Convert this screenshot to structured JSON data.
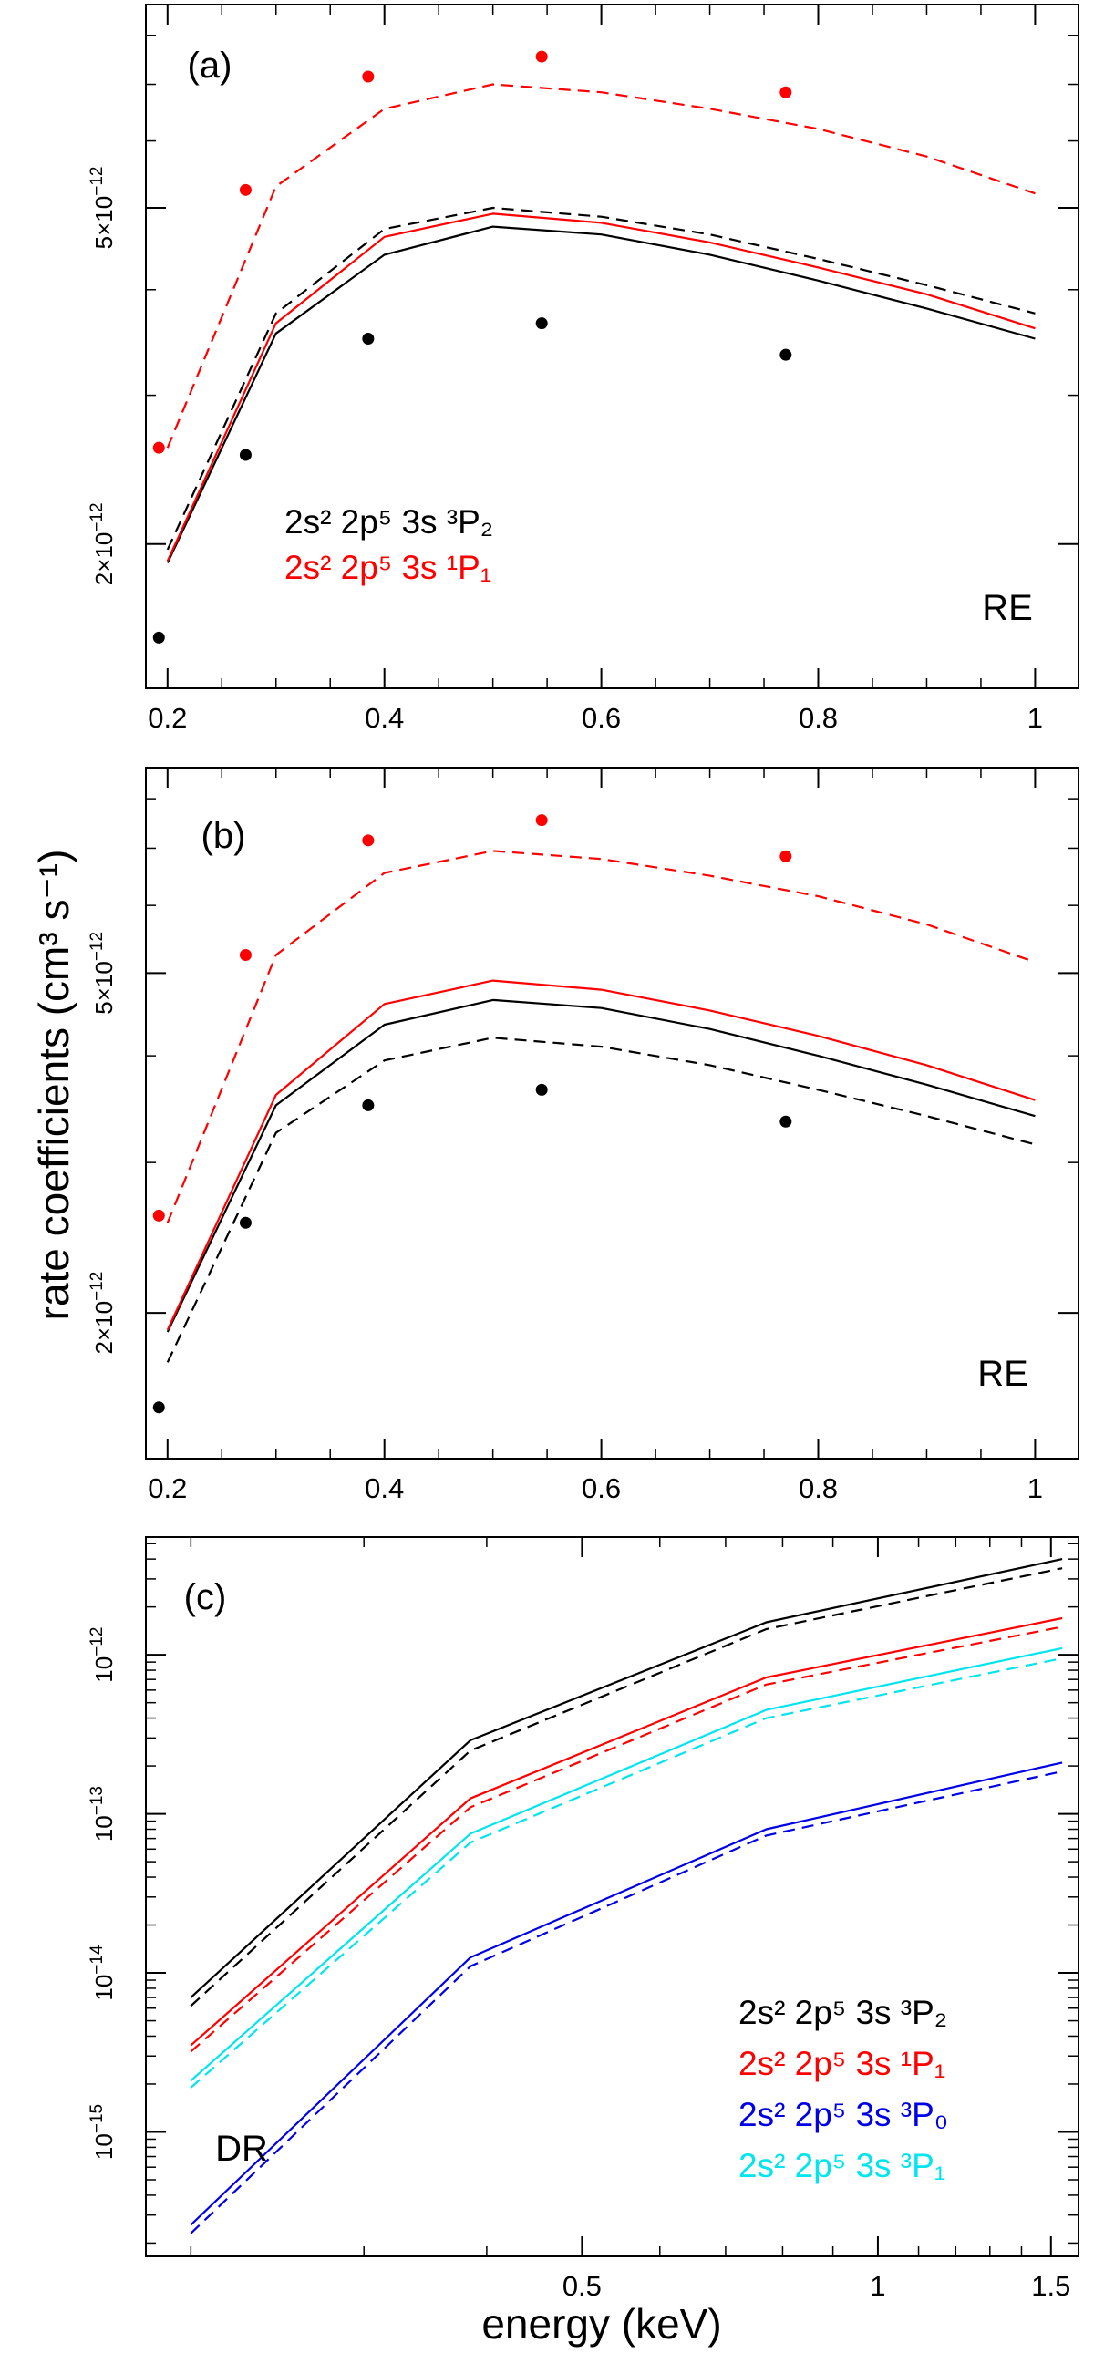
{
  "figure": {
    "ylabel": "rate coefficients (cm³ s⁻¹)",
    "xlabel": "energy (keV)"
  },
  "chart_data": [
    {
      "id": "a",
      "type": "line",
      "panel_label": "(a)",
      "process_label": "RE",
      "xlabel": "",
      "ylabel": "",
      "xscale": "linear",
      "yscale": "log",
      "xlim": [
        0.18,
        1.04
      ],
      "ylim": [
        1.35e-12,
        8.7e-12
      ],
      "x_ticks": [
        0.2,
        0.4,
        0.6,
        0.8,
        1.0
      ],
      "x_tick_labels": [
        "0.2",
        "0.4",
        "0.6",
        "0.8",
        "1"
      ],
      "y_ticks": [
        2e-12,
        5e-12
      ],
      "y_tick_labels": [
        {
          "mantissa": "2×10",
          "exp": "−12"
        },
        {
          "mantissa": "5×10",
          "exp": "−12"
        }
      ],
      "legend": [
        {
          "text": "2s² 2p⁵ 3s ³P₂",
          "color": "#000000"
        },
        {
          "text": "2s² 2p⁵ 3s ¹P₁",
          "color": "#ff0000"
        }
      ],
      "series": [
        {
          "name": "3P2 solid",
          "color": "#000000",
          "style": "solid",
          "x": [
            0.2,
            0.3,
            0.4,
            0.5,
            0.6,
            0.7,
            0.8,
            0.9,
            1.0
          ],
          "y": [
            1.9e-12,
            3.55e-12,
            4.4e-12,
            4.75e-12,
            4.65e-12,
            4.4e-12,
            4.1e-12,
            3.8e-12,
            3.5e-12
          ]
        },
        {
          "name": "3P2 dashed",
          "color": "#000000",
          "style": "dashed",
          "x": [
            0.2,
            0.3,
            0.4,
            0.5,
            0.6,
            0.7,
            0.8,
            0.9,
            1.0
          ],
          "y": [
            1.97e-12,
            3.75e-12,
            4.72e-12,
            5e-12,
            4.88e-12,
            4.65e-12,
            4.35e-12,
            4.05e-12,
            3.75e-12
          ]
        },
        {
          "name": "1P1 solid",
          "color": "#ff0000",
          "style": "solid",
          "x": [
            0.2,
            0.3,
            0.4,
            0.5,
            0.6,
            0.7,
            0.8,
            0.9,
            1.0
          ],
          "y": [
            1.91e-12,
            3.65e-12,
            4.62e-12,
            4.92e-12,
            4.8e-12,
            4.55e-12,
            4.25e-12,
            3.95e-12,
            3.6e-12
          ]
        },
        {
          "name": "1P1 dashed",
          "color": "#ff0000",
          "style": "dashed",
          "x": [
            0.2,
            0.3,
            0.4,
            0.5,
            0.6,
            0.7,
            0.8,
            0.9,
            1.0
          ],
          "y": [
            2.6e-12,
            5.3e-12,
            6.55e-12,
            7e-12,
            6.85e-12,
            6.55e-12,
            6.2e-12,
            5.75e-12,
            5.2e-12
          ]
        }
      ],
      "points": [
        {
          "name": "3P2 points",
          "color": "#000000",
          "x": [
            0.192,
            0.272,
            0.385,
            0.545,
            0.77
          ],
          "y": [
            1.55e-12,
            2.55e-12,
            3.5e-12,
            3.65e-12,
            3.35e-12
          ]
        },
        {
          "name": "1P1 points",
          "color": "#ff0000",
          "x": [
            0.192,
            0.272,
            0.385,
            0.545,
            0.77
          ],
          "y": [
            2.6e-12,
            5.25e-12,
            7.15e-12,
            7.55e-12,
            6.85e-12
          ]
        }
      ]
    },
    {
      "id": "b",
      "type": "line",
      "panel_label": "(b)",
      "process_label": "RE",
      "xlabel": "",
      "ylabel": "",
      "xscale": "linear",
      "yscale": "log",
      "xlim": [
        0.18,
        1.04
      ],
      "ylim": [
        1.35e-12,
        8.7e-12
      ],
      "x_ticks": [
        0.2,
        0.4,
        0.6,
        0.8,
        1.0
      ],
      "x_tick_labels": [
        "0.2",
        "0.4",
        "0.6",
        "0.8",
        "1"
      ],
      "y_ticks": [
        2e-12,
        5e-12
      ],
      "y_tick_labels": [
        {
          "mantissa": "2×10",
          "exp": "−12"
        },
        {
          "mantissa": "5×10",
          "exp": "−12"
        }
      ],
      "legend": [],
      "series": [
        {
          "name": "3P2 solid",
          "color": "#000000",
          "style": "solid",
          "x": [
            0.2,
            0.3,
            0.4,
            0.5,
            0.6,
            0.7,
            0.8,
            0.9,
            1.0
          ],
          "y": [
            1.9e-12,
            3.5e-12,
            4.35e-12,
            4.65e-12,
            4.55e-12,
            4.3e-12,
            4e-12,
            3.7e-12,
            3.4e-12
          ]
        },
        {
          "name": "3P2 dashed",
          "color": "#000000",
          "style": "dashed",
          "x": [
            0.2,
            0.3,
            0.4,
            0.5,
            0.6,
            0.7,
            0.8,
            0.9,
            1.0
          ],
          "y": [
            1.75e-12,
            3.25e-12,
            3.95e-12,
            4.2e-12,
            4.1e-12,
            3.9e-12,
            3.65e-12,
            3.4e-12,
            3.15e-12
          ]
        },
        {
          "name": "1P1 solid",
          "color": "#ff0000",
          "style": "solid",
          "x": [
            0.2,
            0.3,
            0.4,
            0.5,
            0.6,
            0.7,
            0.8,
            0.9,
            1.0
          ],
          "y": [
            1.91e-12,
            3.6e-12,
            4.6e-12,
            4.9e-12,
            4.78e-12,
            4.52e-12,
            4.22e-12,
            3.9e-12,
            3.55e-12
          ]
        },
        {
          "name": "1P1 dashed",
          "color": "#ff0000",
          "style": "dashed",
          "x": [
            0.2,
            0.3,
            0.4,
            0.5,
            0.6,
            0.7,
            0.8,
            0.9,
            1.0
          ],
          "y": [
            2.55e-12,
            5.25e-12,
            6.55e-12,
            6.95e-12,
            6.8e-12,
            6.5e-12,
            6.15e-12,
            5.7e-12,
            5.15e-12
          ]
        }
      ],
      "points": [
        {
          "name": "3P2 points",
          "color": "#000000",
          "x": [
            0.192,
            0.272,
            0.385,
            0.545,
            0.77
          ],
          "y": [
            1.55e-12,
            2.55e-12,
            3.5e-12,
            3.65e-12,
            3.35e-12
          ]
        },
        {
          "name": "1P1 points",
          "color": "#ff0000",
          "x": [
            0.192,
            0.272,
            0.385,
            0.545,
            0.77
          ],
          "y": [
            2.6e-12,
            5.25e-12,
            7.15e-12,
            7.55e-12,
            6.85e-12
          ]
        }
      ]
    },
    {
      "id": "c",
      "type": "line",
      "panel_label": "(c)",
      "process_label": "DR",
      "xlabel": "energy (keV)",
      "ylabel": "",
      "xscale": "log",
      "yscale": "log",
      "xlim": [
        0.18,
        1.6
      ],
      "ylim": [
        1.65e-16,
        5.5e-12
      ],
      "x_ticks": [
        0.5,
        1.0,
        1.5
      ],
      "x_tick_labels": [
        "0.5",
        "1",
        "1.5"
      ],
      "y_ticks": [
        1e-15,
        1e-14,
        1e-13,
        1e-12
      ],
      "y_tick_labels": [
        {
          "mantissa": "10",
          "exp": "−15"
        },
        {
          "mantissa": "10",
          "exp": "−14"
        },
        {
          "mantissa": "10",
          "exp": "−13"
        },
        {
          "mantissa": "10",
          "exp": "−12"
        }
      ],
      "legend": [
        {
          "text": "2s² 2p⁵ 3s ³P₂",
          "color": "#000000"
        },
        {
          "text": "2s² 2p⁵ 3s ¹P₁",
          "color": "#ff0000"
        },
        {
          "text": "2s² 2p⁵ 3s ³P₀",
          "color": "#0000e6"
        },
        {
          "text": "2s² 2p⁵ 3s ³P₁",
          "color": "#00e5ee"
        }
      ],
      "series": [
        {
          "name": "3P2 solid",
          "color": "#000000",
          "style": "solid",
          "x": [
            0.2,
            0.385,
            0.77,
            1.54
          ],
          "y": [
            7e-15,
            2.9e-13,
            1.6e-12,
            4e-12
          ]
        },
        {
          "name": "3P2 dashed",
          "color": "#000000",
          "style": "dashed",
          "x": [
            0.2,
            0.385,
            0.77,
            1.54
          ],
          "y": [
            6.2e-15,
            2.5e-13,
            1.45e-12,
            3.5e-12
          ]
        },
        {
          "name": "1P1 solid",
          "color": "#ff0000",
          "style": "solid",
          "x": [
            0.2,
            0.385,
            0.77,
            1.54
          ],
          "y": [
            3.5e-15,
            1.25e-13,
            7.2e-13,
            1.7e-12
          ]
        },
        {
          "name": "1P1 dashed",
          "color": "#ff0000",
          "style": "dashed",
          "x": [
            0.2,
            0.385,
            0.77,
            1.54
          ],
          "y": [
            3.2e-15,
            1.1e-13,
            6.5e-13,
            1.5e-12
          ]
        },
        {
          "name": "3P1 solid",
          "color": "#00e5ee",
          "style": "solid",
          "x": [
            0.2,
            0.385,
            0.77,
            1.54
          ],
          "y": [
            2.1e-15,
            7.5e-14,
            4.5e-13,
            1.1e-12
          ]
        },
        {
          "name": "3P1 dashed",
          "color": "#00e5ee",
          "style": "dashed",
          "x": [
            0.2,
            0.385,
            0.77,
            1.54
          ],
          "y": [
            1.9e-15,
            6.6e-14,
            4e-13,
            9.5e-13
          ]
        },
        {
          "name": "3P0 solid",
          "color": "#0000e6",
          "style": "solid",
          "x": [
            0.2,
            0.385,
            0.77,
            1.54
          ],
          "y": [
            2.6e-16,
            1.25e-14,
            8e-14,
            2.1e-13
          ]
        },
        {
          "name": "3P0 dashed",
          "color": "#0000e6",
          "style": "dashed",
          "x": [
            0.2,
            0.385,
            0.77,
            1.54
          ],
          "y": [
            2.3e-16,
            1.1e-14,
            7.3e-14,
            1.85e-13
          ]
        }
      ],
      "points": []
    }
  ]
}
